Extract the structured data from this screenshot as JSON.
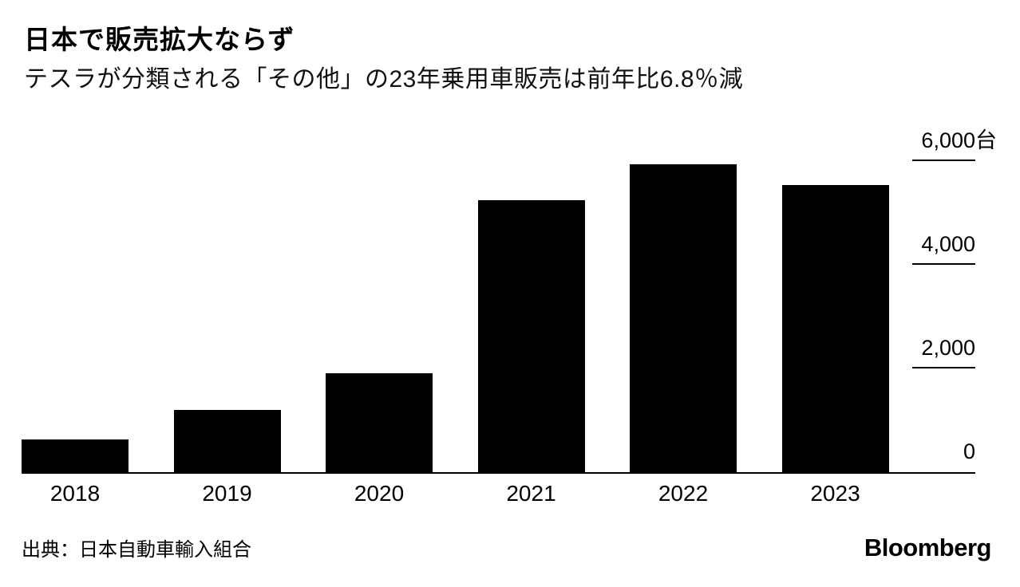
{
  "header": {
    "title": "日本で販売拡大ならず",
    "subtitle": "テスラが分類される「その他」の23年乗用車販売は前年比6.8％減"
  },
  "chart_data": {
    "type": "bar",
    "title": "日本で販売拡大ならず",
    "subtitle": "テスラが分類される「その他」の23年乗用車販売は前年比6.8％減",
    "categories": [
      "2018",
      "2019",
      "2020",
      "2021",
      "2022",
      "2023"
    ],
    "values": [
      630,
      1200,
      1910,
      5245,
      5940,
      5535
    ],
    "unit": "台",
    "xlabel": "",
    "ylabel": "",
    "ylim": [
      0,
      6000
    ],
    "yticks": [
      {
        "value": 6000,
        "label": "6,000台"
      },
      {
        "value": 4000,
        "label": "4,000"
      },
      {
        "value": 2000,
        "label": "2,000"
      },
      {
        "value": 0,
        "label": "0"
      }
    ],
    "ytick_side": "right",
    "grid": "off",
    "legend": "none",
    "bar_color": "#000000",
    "background_color": "#ffffff"
  },
  "footer": {
    "source": "出典：日本自動車輸入組合",
    "brand": "Bloomberg"
  }
}
